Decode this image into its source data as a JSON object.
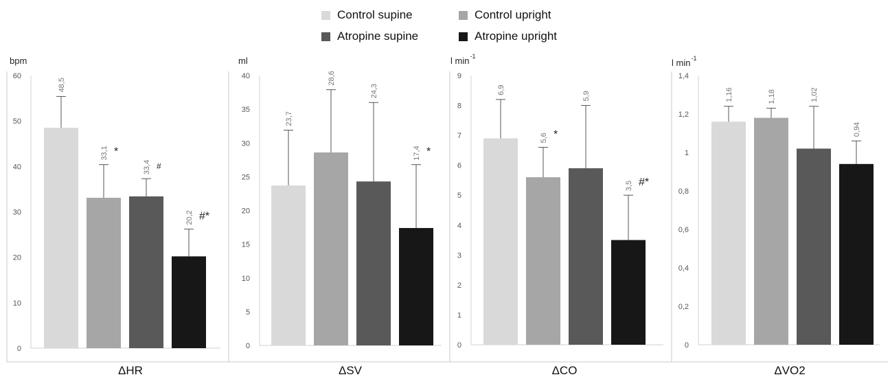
{
  "legend": [
    {
      "label": "Control supine",
      "color": "#d9d9d9"
    },
    {
      "label": "Control upright",
      "color": "#a6a6a6"
    },
    {
      "label": "Atropine supine",
      "color": "#595959"
    },
    {
      "label": "Atropine upright",
      "color": "#171717"
    }
  ],
  "chart_data": [
    {
      "type": "bar",
      "xlabel": "ΔHR",
      "unit_label": "bpm",
      "unit_sup": "",
      "ylim": [
        0,
        60
      ],
      "ticks": [
        0,
        10,
        20,
        30,
        40,
        50,
        60
      ],
      "tick_labels": [
        "0",
        "10",
        "20",
        "30",
        "40",
        "50",
        "60"
      ],
      "series": [
        {
          "name": "Control supine",
          "value": 48.5,
          "label": "48,5",
          "err": 6.9,
          "mark": ""
        },
        {
          "name": "Control upright",
          "value": 33.1,
          "label": "33,1",
          "err": 7.3,
          "mark": "*"
        },
        {
          "name": "Atropine supine",
          "value": 33.4,
          "label": "33,4",
          "err": 3.9,
          "mark": "#"
        },
        {
          "name": "Atropine upright",
          "value": 20.2,
          "label": "20,2",
          "err": 6.0,
          "mark": "#*"
        }
      ]
    },
    {
      "type": "bar",
      "xlabel": "ΔSV",
      "unit_label": "ml",
      "unit_sup": "",
      "ylim": [
        0,
        40
      ],
      "ticks": [
        0,
        5,
        10,
        15,
        20,
        25,
        30,
        35,
        40
      ],
      "tick_labels": [
        "0",
        "5",
        "10",
        "15",
        "20",
        "25",
        "30",
        "35",
        "40"
      ],
      "series": [
        {
          "name": "Control supine",
          "value": 23.7,
          "label": "23,7",
          "err": 8.2,
          "mark": ""
        },
        {
          "name": "Control upright",
          "value": 28.6,
          "label": "28,6",
          "err": 9.3,
          "mark": ""
        },
        {
          "name": "Atropine supine",
          "value": 24.3,
          "label": "24,3",
          "err": 11.7,
          "mark": ""
        },
        {
          "name": "Atropine upright",
          "value": 17.4,
          "label": "17,4",
          "err": 9.4,
          "mark": "*"
        }
      ]
    },
    {
      "type": "bar",
      "xlabel": "ΔCO",
      "unit_label": "l min",
      "unit_sup": "-1",
      "ylim": [
        0,
        9
      ],
      "ticks": [
        0,
        1,
        2,
        3,
        4,
        5,
        6,
        7,
        8,
        9
      ],
      "tick_labels": [
        "0",
        "1",
        "2",
        "3",
        "4",
        "5",
        "6",
        "7",
        "8",
        "9"
      ],
      "series": [
        {
          "name": "Control supine",
          "value": 6.9,
          "label": "6,9",
          "err": 1.3,
          "mark": ""
        },
        {
          "name": "Control upright",
          "value": 5.6,
          "label": "5,6",
          "err": 1.0,
          "mark": "*"
        },
        {
          "name": "Atropine supine",
          "value": 5.9,
          "label": "5,9",
          "err": 2.1,
          "mark": ""
        },
        {
          "name": "Atropine upright",
          "value": 3.5,
          "label": "3,5",
          "err": 1.5,
          "mark": "#*"
        }
      ]
    },
    {
      "type": "bar",
      "xlabel": "ΔVO2",
      "unit_label": "l min",
      "unit_sup": "-1",
      "ylim": [
        0,
        1.4
      ],
      "ticks": [
        0,
        0.2,
        0.4,
        0.6,
        0.8,
        1.0,
        1.2,
        1.4
      ],
      "tick_labels": [
        "0",
        "0,2",
        "0,4",
        "0,6",
        "0,8",
        "1",
        "1,2",
        "1,4"
      ],
      "series": [
        {
          "name": "Control supine",
          "value": 1.16,
          "label": "1,16",
          "err": 0.08,
          "mark": ""
        },
        {
          "name": "Control upright",
          "value": 1.18,
          "label": "1,18",
          "err": 0.05,
          "mark": ""
        },
        {
          "name": "Atropine supine",
          "value": 1.02,
          "label": "1,02",
          "err": 0.22,
          "mark": ""
        },
        {
          "name": "Atropine upright",
          "value": 0.94,
          "label": "0,94",
          "err": 0.12,
          "mark": ""
        }
      ]
    }
  ]
}
